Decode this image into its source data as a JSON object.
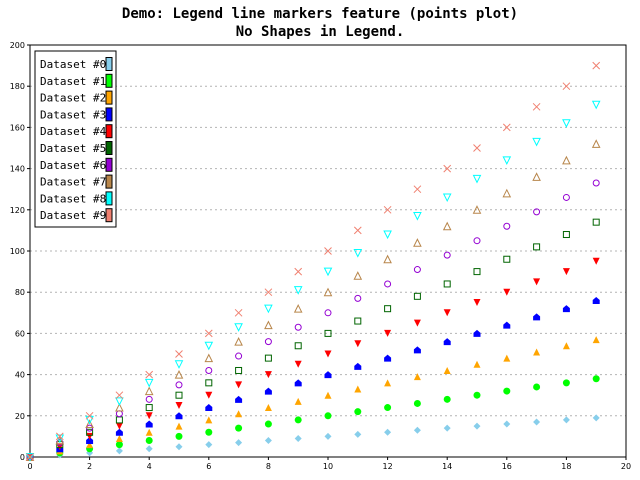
{
  "chart_data": {
    "type": "scatter",
    "title": "Demo: Legend line markers feature (points plot)",
    "subtitle": "No Shapes in Legend.",
    "xlim": [
      0,
      20
    ],
    "ylim": [
      0,
      200
    ],
    "x_ticks": [
      "0",
      "2",
      "4",
      "6",
      "8",
      "10",
      "12",
      "14",
      "16",
      "18",
      "20"
    ],
    "y_ticks": [
      "0",
      "20",
      "40",
      "60",
      "80",
      "100",
      "120",
      "140",
      "160",
      "180",
      "200"
    ],
    "grid": "horizontal dotted",
    "legend_position": "top-left",
    "x": [
      0,
      1,
      2,
      3,
      4,
      5,
      6,
      7,
      8,
      9,
      10,
      11,
      12,
      13,
      14,
      15,
      16,
      17,
      18,
      19
    ],
    "series": [
      {
        "name": "Dataset #0",
        "color": "#87ceeb",
        "marker": "diamond",
        "values": [
          0,
          1,
          2,
          3,
          4,
          5,
          6,
          7,
          8,
          9,
          10,
          11,
          12,
          13,
          14,
          15,
          16,
          17,
          18,
          19
        ]
      },
      {
        "name": "Dataset #1",
        "color": "#00ff00",
        "marker": "circle",
        "values": [
          0,
          2,
          4,
          6,
          8,
          10,
          12,
          14,
          16,
          18,
          20,
          22,
          24,
          26,
          28,
          30,
          32,
          34,
          36,
          38
        ]
      },
      {
        "name": "Dataset #2",
        "color": "#ffa500",
        "marker": "triangle-up",
        "values": [
          0,
          3,
          6,
          9,
          12,
          15,
          18,
          21,
          24,
          27,
          30,
          33,
          36,
          39,
          42,
          45,
          48,
          51,
          54,
          57
        ]
      },
      {
        "name": "Dataset #3",
        "color": "#0000ff",
        "marker": "house",
        "values": [
          0,
          4,
          8,
          12,
          16,
          20,
          24,
          28,
          32,
          36,
          40,
          44,
          48,
          52,
          56,
          60,
          64,
          68,
          72,
          76
        ]
      },
      {
        "name": "Dataset #4",
        "color": "#ff0000",
        "marker": "triangle-down",
        "values": [
          0,
          5,
          10,
          15,
          20,
          25,
          30,
          35,
          40,
          45,
          50,
          55,
          60,
          65,
          70,
          75,
          80,
          85,
          90,
          95
        ]
      },
      {
        "name": "Dataset #5",
        "color": "#006400",
        "marker": "square-open",
        "values": [
          0,
          6,
          12,
          18,
          24,
          30,
          36,
          42,
          48,
          54,
          60,
          66,
          72,
          78,
          84,
          90,
          96,
          102,
          108,
          114
        ]
      },
      {
        "name": "Dataset #6",
        "color": "#9400d3",
        "marker": "circle-open",
        "values": [
          0,
          7,
          14,
          21,
          28,
          35,
          42,
          49,
          56,
          63,
          70,
          77,
          84,
          91,
          98,
          105,
          112,
          119,
          126,
          133
        ]
      },
      {
        "name": "Dataset #7",
        "color": "#b8864b",
        "marker": "triangle-up-open",
        "values": [
          0,
          8,
          16,
          24,
          32,
          40,
          48,
          56,
          64,
          72,
          80,
          88,
          96,
          104,
          112,
          120,
          128,
          136,
          144,
          152
        ]
      },
      {
        "name": "Dataset #8",
        "color": "#00ffff",
        "marker": "triangle-down-open",
        "values": [
          0,
          9,
          18,
          27,
          36,
          45,
          54,
          63,
          72,
          81,
          90,
          99,
          108,
          117,
          126,
          135,
          144,
          153,
          162,
          171
        ]
      },
      {
        "name": "Dataset #9",
        "color": "#f08070",
        "marker": "cross",
        "values": [
          0,
          10,
          20,
          30,
          40,
          50,
          60,
          70,
          80,
          90,
          100,
          110,
          120,
          130,
          140,
          150,
          160,
          170,
          180,
          190
        ]
      }
    ]
  }
}
